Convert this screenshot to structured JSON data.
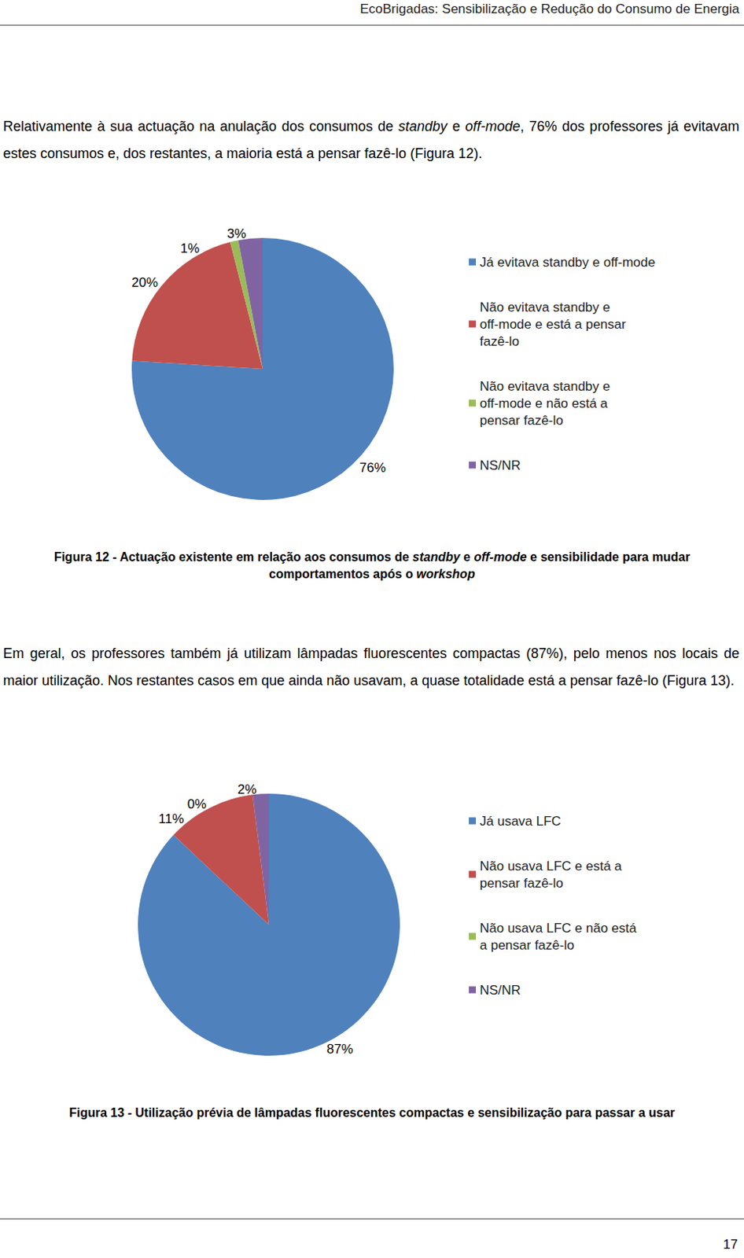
{
  "header": "EcoBrigadas: Sensibilização e Redução do Consumo de Energia",
  "paragraphs": [
    [
      {
        "text": "Relativamente à sua actuação na anulação dos consumos de "
      },
      {
        "text": "standby",
        "italic": true
      },
      {
        "text": " e "
      },
      {
        "text": "off-mode",
        "italic": true
      },
      {
        "text": ", 76% dos professores já evitavam estes consumos e, dos restantes, a maioria está a pensar fazê-lo (Figura 12)."
      }
    ],
    [
      {
        "text": "Em geral, os professores também já utilizam lâmpadas fluorescentes compactas (87%), pelo menos nos locais de maior utilização. Nos restantes casos em que ainda não usavam, a quase totalidade está a pensar fazê-lo (Figura 13)."
      }
    ]
  ],
  "chart_data": [
    {
      "type": "pie",
      "categories": [
        "Já evitava standby e off-mode",
        "Não evitava standby e off-mode e está a pensar fazê-lo",
        "Não evitava standby e off-mode e não está a pensar fazê-lo",
        "NS/NR"
      ],
      "values": [
        76,
        20,
        1,
        3
      ],
      "value_labels": [
        "76%",
        "20%",
        "1%",
        "3%"
      ],
      "colors": [
        "#4F81BD",
        "#C0504D",
        "#9BBB59",
        "#8064A2"
      ],
      "legend": "right",
      "data_labels": true,
      "caption": [
        {
          "text": "Figura 12 - Actuação existente em relação aos consumos de "
        },
        {
          "text": "standby",
          "italic": true
        },
        {
          "text": " e "
        },
        {
          "text": "off-mode",
          "italic": true
        },
        {
          "text": " e sensibilidade para mudar comportamentos após o "
        },
        {
          "text": "workshop",
          "italic": true
        }
      ]
    },
    {
      "type": "pie",
      "categories": [
        "Já usava LFC",
        "Não usava LFC e está a pensar fazê-lo",
        "Não usava LFC e não está a pensar fazê-lo",
        "NS/NR"
      ],
      "values": [
        87,
        11,
        0,
        2
      ],
      "value_labels": [
        "87%",
        "11%",
        "0%",
        "2%"
      ],
      "colors": [
        "#4F81BD",
        "#C0504D",
        "#9BBB59",
        "#8064A2"
      ],
      "legend": "right",
      "data_labels": true,
      "caption": [
        {
          "text": "Figura 13 - Utilização prévia de lâmpadas fluorescentes compactas e sensibilização para passar a usar"
        }
      ]
    }
  ],
  "page_number": 17
}
